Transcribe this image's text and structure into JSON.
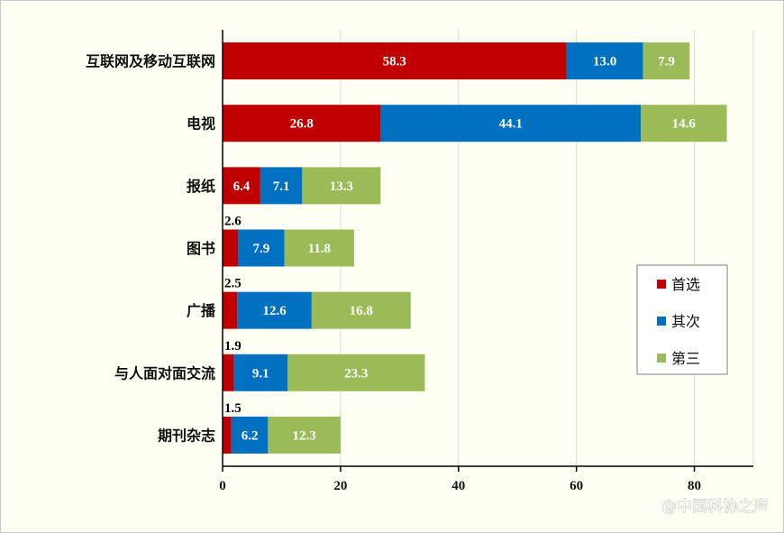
{
  "chart_data": {
    "type": "bar",
    "orientation": "horizontal",
    "stacked": true,
    "categories": [
      "互联网及移动互联网",
      "电视",
      "报纸",
      "图书",
      "广播",
      "与人面对面交流",
      "期刊杂志"
    ],
    "series": [
      {
        "name": "首选",
        "color": "#c00000",
        "values": [
          58.3,
          26.8,
          6.4,
          2.6,
          2.5,
          1.9,
          1.5
        ]
      },
      {
        "name": "其次",
        "color": "#0070c0",
        "values": [
          13.0,
          44.1,
          7.1,
          7.9,
          12.6,
          9.1,
          6.2
        ]
      },
      {
        "name": "第三",
        "color": "#9bbb59",
        "values": [
          7.9,
          14.6,
          13.3,
          11.8,
          16.8,
          23.3,
          12.3
        ]
      }
    ],
    "xlim": [
      0,
      90
    ],
    "xticks": [
      0,
      20,
      40,
      60,
      80
    ],
    "grid": true,
    "legend_position": "right"
  },
  "watermark": "@中国科协之声"
}
